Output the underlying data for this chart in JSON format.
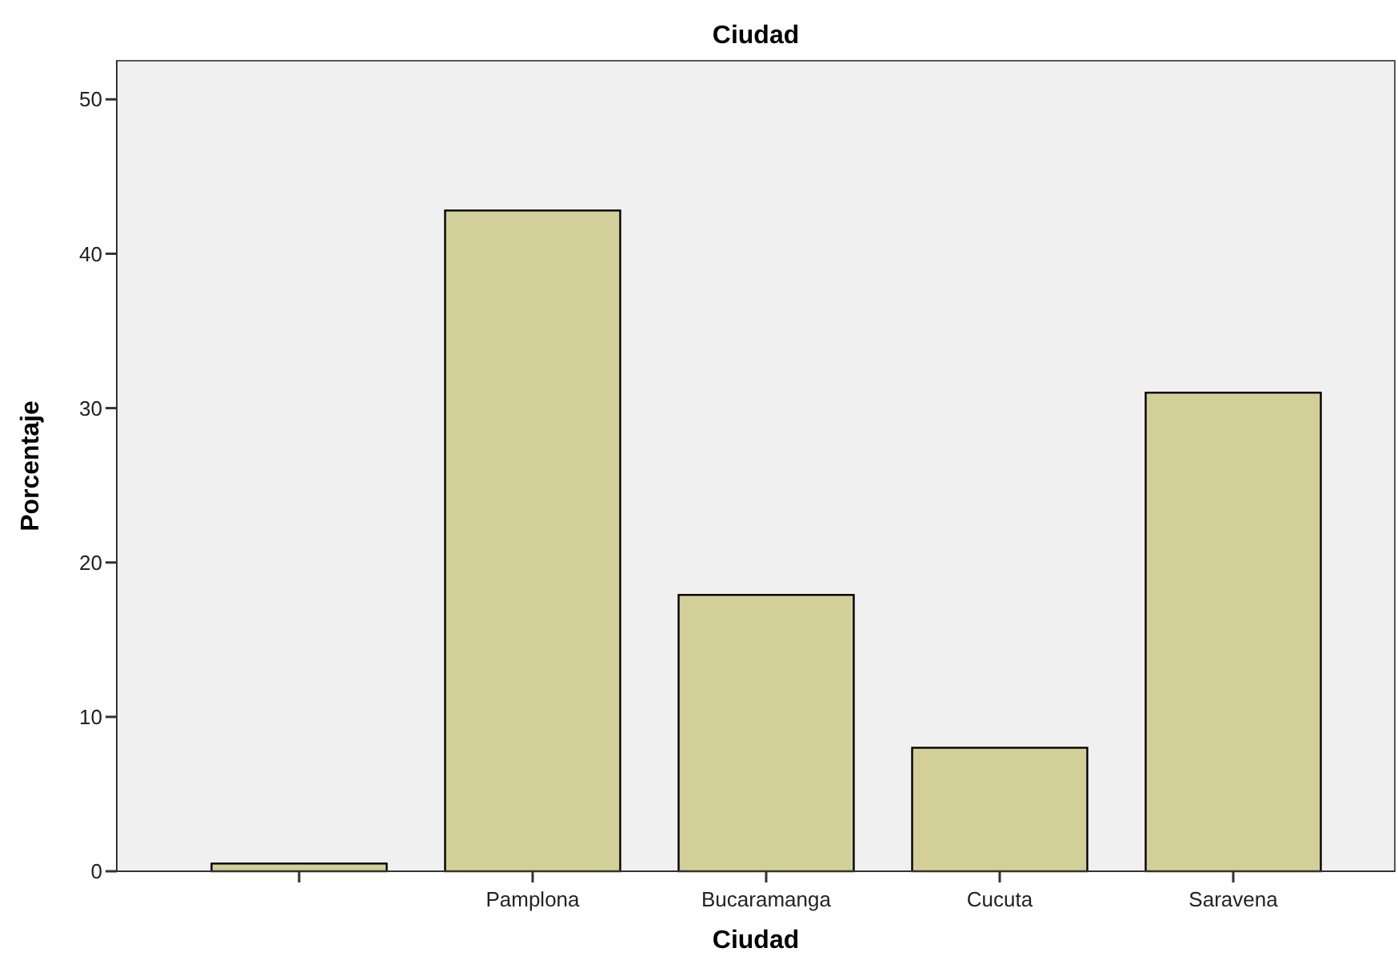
{
  "chart_data": {
    "type": "bar",
    "title": "Ciudad",
    "xlabel": "Ciudad",
    "ylabel": "Porcentaje",
    "categories": [
      null,
      "Pamplona",
      "Bucaramanga",
      "Cucuta",
      "Saravena"
    ],
    "values": [
      0.5,
      42.8,
      17.9,
      8.0,
      31.0
    ],
    "color": "#d3cf98",
    "ylim": [
      0,
      52.5
    ],
    "yticks": [
      0,
      10,
      20,
      30,
      40,
      50
    ],
    "grid": false
  }
}
